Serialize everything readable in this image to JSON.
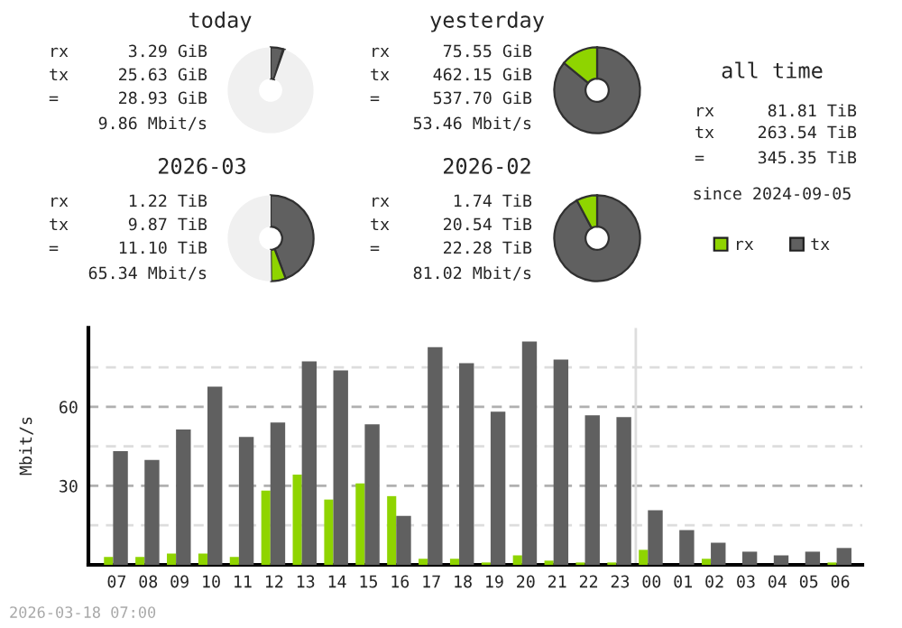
{
  "chart_data": [
    {
      "type": "donut",
      "title": "today",
      "categories": [
        null,
        null,
        null
      ],
      "values": [
        4.77,
        0.61,
        94.62
      ],
      "colors": [
        "#606060",
        "#8fd400",
        "#f0f0f0"
      ],
      "annotations": [
        "rx",
        "3.29 GiB",
        "tx",
        "25.63 GiB",
        "=",
        "28.93 GiB",
        "9.86 Mbit/s"
      ]
    },
    {
      "type": "donut",
      "title": "yesterday",
      "categories": [
        null,
        null
      ],
      "values": [
        85.95,
        14.05
      ],
      "colors": [
        "#606060",
        "#8fd400"
      ],
      "annotations": [
        "rx",
        "75.55 GiB",
        "tx",
        "462.15 GiB",
        "=",
        "537.70 GiB",
        "53.46 Mbit/s"
      ]
    },
    {
      "type": "other",
      "title": "all time",
      "annotations": [
        "rx",
        "81.81 TiB",
        "tx",
        "263.54 TiB",
        "=",
        "345.35 TiB",
        "since 2024-09-05"
      ]
    },
    {
      "type": "donut",
      "title": "2026-03",
      "categories": [
        null,
        null,
        null
      ],
      "values": [
        44.3,
        5.48,
        50.22
      ],
      "colors": [
        "#606060",
        "#8fd400",
        "#f0f0f0"
      ],
      "annotations": [
        "rx",
        "1.22 TiB",
        "tx",
        "9.87 TiB",
        "=",
        "11.10 TiB",
        "65.34 Mbit/s"
      ]
    },
    {
      "type": "donut",
      "title": "2026-02",
      "categories": [
        null,
        null
      ],
      "values": [
        92.19,
        7.81
      ],
      "colors": [
        "#606060",
        "#8fd400"
      ],
      "annotations": [
        "rx",
        "1.74 TiB",
        "tx",
        "20.54 TiB",
        "=",
        "22.28 TiB",
        "81.02 Mbit/s"
      ]
    },
    {
      "type": "bar",
      "ylabel": "Mbit/s",
      "categories": [
        "07",
        "08",
        "09",
        "10",
        "11",
        "12",
        "13",
        "14",
        "15",
        "16",
        "17",
        "18",
        "19",
        "20",
        "21",
        "22",
        "23",
        "00",
        "01",
        "02",
        "03",
        "04",
        "05",
        "06"
      ],
      "series": [
        {
          "name": "rx",
          "color": "#8fd400",
          "values": [
            3.0,
            3.0,
            4.3,
            4.3,
            3.0,
            28.2,
            34.3,
            24.8,
            30.9,
            26.1,
            2.3,
            2.3,
            0.9,
            3.6,
            1.6,
            0.9,
            0.9,
            5.7,
            0,
            2.3,
            0,
            0,
            0,
            0.9
          ]
        },
        {
          "name": "tx",
          "color": "#606060",
          "values": [
            43.2,
            39.8,
            51.4,
            67.7,
            48.6,
            54.1,
            77.3,
            73.9,
            53.4,
            18.6,
            82.7,
            76.6,
            58.2,
            84.8,
            78.0,
            56.8,
            56.1,
            20.7,
            13.2,
            8.4,
            5.0,
            3.6,
            5.0,
            6.4
          ]
        }
      ],
      "ylim": [
        0,
        90
      ],
      "yticks": [
        {
          "value": 15,
          "label": null
        },
        30,
        {
          "value": 45,
          "label": null
        },
        60,
        {
          "value": 75,
          "label": null
        }
      ],
      "grid": "y",
      "legend": "top right",
      "ref_lines": [
        {
          "axis": "x",
          "value": "00",
          "color": "#dddddd"
        }
      ],
      "annotations": [
        "2026-03-18 07:00"
      ]
    }
  ]
}
